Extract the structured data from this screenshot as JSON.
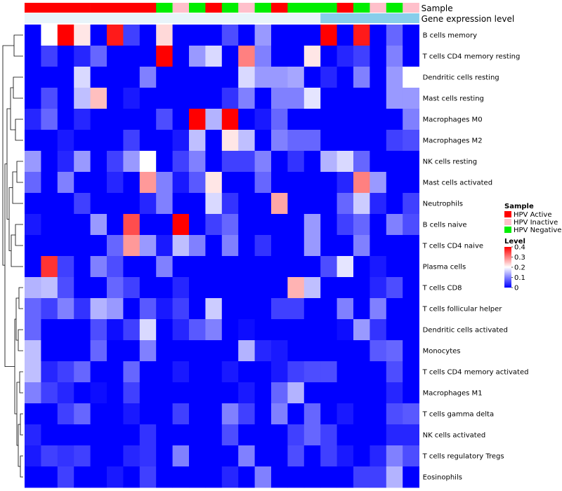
{
  "chart_data": {
    "type": "heatmap",
    "annotation_tracks": [
      "Sample",
      "Gene expression level"
    ],
    "rows": [
      "B cells memory",
      "T cells CD4 memory resting",
      "Dendritic cells resting",
      "Mast cells resting",
      "Macrophages M0",
      "Macrophages M2",
      "NK cells resting",
      "Mast cells activated",
      "Neutrophils",
      "B cells naive",
      "T cells CD4 naive",
      "Plasma cells",
      "T cells CD8",
      "T cells follicular helper",
      "Dendritic cells activated",
      "Monocytes",
      "T cells CD4 memory activated",
      "Macrophages M1",
      "T cells gamma delta",
      "NK cells activated",
      "T cells regulatory  Tregs",
      "Eosinophils"
    ],
    "sample_groups": [
      "A",
      "A",
      "A",
      "A",
      "A",
      "A",
      "A",
      "A",
      "N",
      "I",
      "N",
      "A",
      "N",
      "I",
      "N",
      "A",
      "N",
      "N",
      "N",
      "A",
      "N",
      "I",
      "N",
      "I"
    ],
    "expression_levels": [
      "H",
      "H",
      "H",
      "H",
      "H",
      "H",
      "H",
      "H",
      "H",
      "H",
      "H",
      "H",
      "H",
      "H",
      "H",
      "H",
      "H",
      "H",
      "L",
      "L",
      "L",
      "L",
      "L",
      "L"
    ],
    "values": [
      [
        0,
        0.2,
        0.4,
        0.22,
        0,
        0.38,
        0.05,
        0,
        0.23,
        0,
        0,
        0,
        0.06,
        0,
        0.12,
        0,
        0,
        0,
        0.4,
        0,
        0.38,
        0,
        0.08,
        0
      ],
      [
        0,
        0.05,
        0,
        0.03,
        0.08,
        0,
        0,
        0,
        0.4,
        0,
        0.12,
        0.17,
        0,
        0.3,
        0.1,
        0,
        0,
        0.22,
        0,
        0.03,
        0.05,
        0,
        0.1,
        0
      ],
      [
        0,
        0,
        0,
        0.17,
        0,
        0,
        0,
        0.1,
        0,
        0,
        0,
        0,
        0,
        0.17,
        0.12,
        0.12,
        0.13,
        0,
        0.03,
        0,
        0.1,
        0,
        0.12,
        0.2
      ],
      [
        0,
        0.06,
        0,
        0.15,
        0.25,
        0,
        0.02,
        0,
        0,
        0,
        0,
        0,
        0.04,
        0.1,
        0,
        0.1,
        0.1,
        0.18,
        0,
        0,
        0,
        0,
        0.12,
        0.12
      ],
      [
        0.03,
        0.08,
        0,
        0.03,
        0,
        0,
        0,
        0,
        0.06,
        0,
        0.4,
        0.14,
        0.4,
        0,
        0.02,
        0.08,
        0,
        0,
        0,
        0,
        0,
        0,
        0,
        0.1
      ],
      [
        0,
        0,
        0.02,
        0,
        0,
        0,
        0.05,
        0,
        0,
        0.02,
        0.15,
        0,
        0.22,
        0.15,
        0,
        0.1,
        0.08,
        0.08,
        0,
        0,
        0,
        0,
        0.05,
        0.06
      ],
      [
        0.12,
        0,
        0.03,
        0.12,
        0,
        0.05,
        0.12,
        0.2,
        0,
        0.05,
        0.1,
        0,
        0.05,
        0.05,
        0.1,
        0,
        0.04,
        0,
        0.14,
        0.17,
        0.08,
        0,
        0,
        0
      ],
      [
        0.08,
        0,
        0.1,
        0,
        0,
        0.03,
        0,
        0.28,
        0.1,
        0.02,
        0.07,
        0.22,
        0,
        0,
        0.08,
        0,
        0,
        0,
        0,
        0.03,
        0.3,
        0.12,
        0,
        0
      ],
      [
        0,
        0,
        0,
        0.05,
        0,
        0,
        0,
        0.03,
        0.1,
        0,
        0,
        0.17,
        0.04,
        0,
        0,
        0.27,
        0,
        0,
        0,
        0.08,
        0.16,
        0.03,
        0,
        0.05
      ],
      [
        0.02,
        0,
        0,
        0,
        0.12,
        0,
        0.34,
        0,
        0,
        0.4,
        0,
        0.05,
        0.08,
        0,
        0,
        0,
        0,
        0.12,
        0,
        0.05,
        0.08,
        0,
        0.1,
        0.06
      ],
      [
        0,
        0,
        0,
        0,
        0,
        0.08,
        0.28,
        0.12,
        0.02,
        0.15,
        0.1,
        0,
        0.1,
        0,
        0.04,
        0,
        0,
        0.12,
        0,
        0,
        0.1,
        0,
        0,
        0
      ],
      [
        0,
        0.36,
        0.05,
        0,
        0.1,
        0.06,
        0,
        0,
        0.1,
        0,
        0,
        0,
        0,
        0,
        0,
        0,
        0,
        0,
        0.06,
        0.18,
        0,
        0.02,
        0,
        0
      ],
      [
        0.14,
        0.15,
        0.06,
        0,
        0,
        0.08,
        0.05,
        0,
        0,
        0.03,
        0,
        0,
        0,
        0,
        0,
        0,
        0.26,
        0.15,
        0,
        0,
        0,
        0.03,
        0.06,
        0
      ],
      [
        0.08,
        0.05,
        0.1,
        0.04,
        0.14,
        0.12,
        0,
        0.07,
        0.02,
        0.05,
        0,
        0.16,
        0,
        0,
        0,
        0.05,
        0.05,
        0,
        0,
        0.1,
        0,
        0.1,
        0,
        0
      ],
      [
        0.08,
        0,
        0,
        0,
        0.06,
        0.01,
        0.05,
        0.17,
        0,
        0.03,
        0.07,
        0.1,
        0,
        0.01,
        0,
        0,
        0,
        0,
        0,
        0.01,
        0.12,
        0.04,
        0,
        0
      ],
      [
        0.15,
        0,
        0,
        0,
        0.08,
        0,
        0,
        0.1,
        0,
        0,
        0,
        0,
        0,
        0.14,
        0.03,
        0.02,
        0,
        0,
        0,
        0,
        0,
        0.07,
        0.08,
        0
      ],
      [
        0.15,
        0.03,
        0.05,
        0.08,
        0,
        0,
        0.08,
        0,
        0,
        0.02,
        0,
        0,
        0.02,
        0,
        0,
        0.02,
        0.05,
        0.06,
        0.06,
        0,
        0,
        0,
        0.06,
        0
      ],
      [
        0.1,
        0.05,
        0.03,
        0,
        0.01,
        0,
        0.05,
        0,
        0,
        0,
        0,
        0,
        0,
        0.02,
        0,
        0.08,
        0.14,
        0,
        0,
        0,
        0,
        0,
        0.03,
        0
      ],
      [
        0,
        0,
        0.05,
        0.08,
        0,
        0,
        0.02,
        0,
        0,
        0.05,
        0,
        0,
        0.1,
        0.05,
        0,
        0.1,
        0,
        0.08,
        0,
        0.02,
        0,
        0,
        0.06,
        0.07
      ],
      [
        0.03,
        0,
        0,
        0,
        0,
        0,
        0,
        0.04,
        0,
        0,
        0,
        0,
        0.06,
        0,
        0,
        0,
        0.05,
        0.08,
        0.05,
        0,
        0,
        0,
        0.03,
        0.03
      ],
      [
        0.02,
        0.05,
        0.04,
        0.05,
        0,
        0,
        0.03,
        0.04,
        0,
        0.1,
        0,
        0,
        0,
        0.1,
        0,
        0,
        0.06,
        0,
        0.05,
        0.02,
        0,
        0.03,
        0.1,
        0.06
      ],
      [
        0,
        0,
        0.05,
        0,
        0,
        0.02,
        0,
        0.05,
        0,
        0,
        0,
        0,
        0.03,
        0,
        0.1,
        0,
        0,
        0,
        0,
        0,
        0.05,
        0.05,
        0.14,
        0
      ]
    ],
    "color_scale": {
      "min": 0,
      "max": 0.4,
      "low": "#0000ff",
      "mid": "#ffffff",
      "high": "#ff0000"
    },
    "group_colors": {
      "A": "#ff0000",
      "I": "#ffc0cb",
      "N": "#00ee00"
    },
    "level_colors": {
      "H": "#e8f4fa",
      "L": "#87ceeb"
    },
    "legend": {
      "sample_title": "Sample",
      "sample_entries": [
        {
          "label": "HPV Active",
          "color": "#ff0000"
        },
        {
          "label": "HPV Inactive",
          "color": "#ffc0cb"
        },
        {
          "label": "HPV Negative",
          "color": "#00ee00"
        }
      ],
      "level_title": "Level",
      "level_ticks": [
        "0.4",
        "0.3",
        "0.2",
        "0.1",
        "0"
      ],
      "placement": "right"
    }
  }
}
